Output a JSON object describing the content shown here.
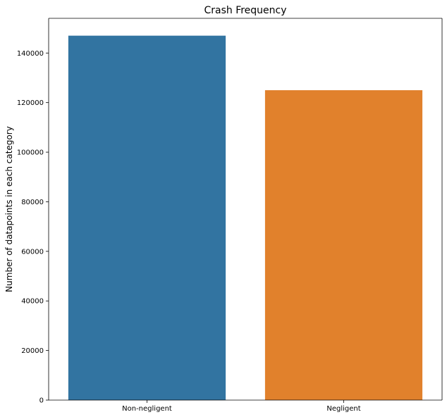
{
  "chart_data": {
    "type": "bar",
    "title": "Crash Frequency",
    "xlabel": "",
    "ylabel": "Number of datapoints in each category",
    "categories": [
      "Non-negligent",
      "Negligent"
    ],
    "values": [
      147000,
      125000
    ],
    "colors": [
      "#3274a1",
      "#e1812c"
    ],
    "ylim": [
      0,
      154000
    ],
    "yticks": [
      0,
      20000,
      40000,
      60000,
      80000,
      100000,
      120000,
      140000
    ],
    "grid": false
  }
}
